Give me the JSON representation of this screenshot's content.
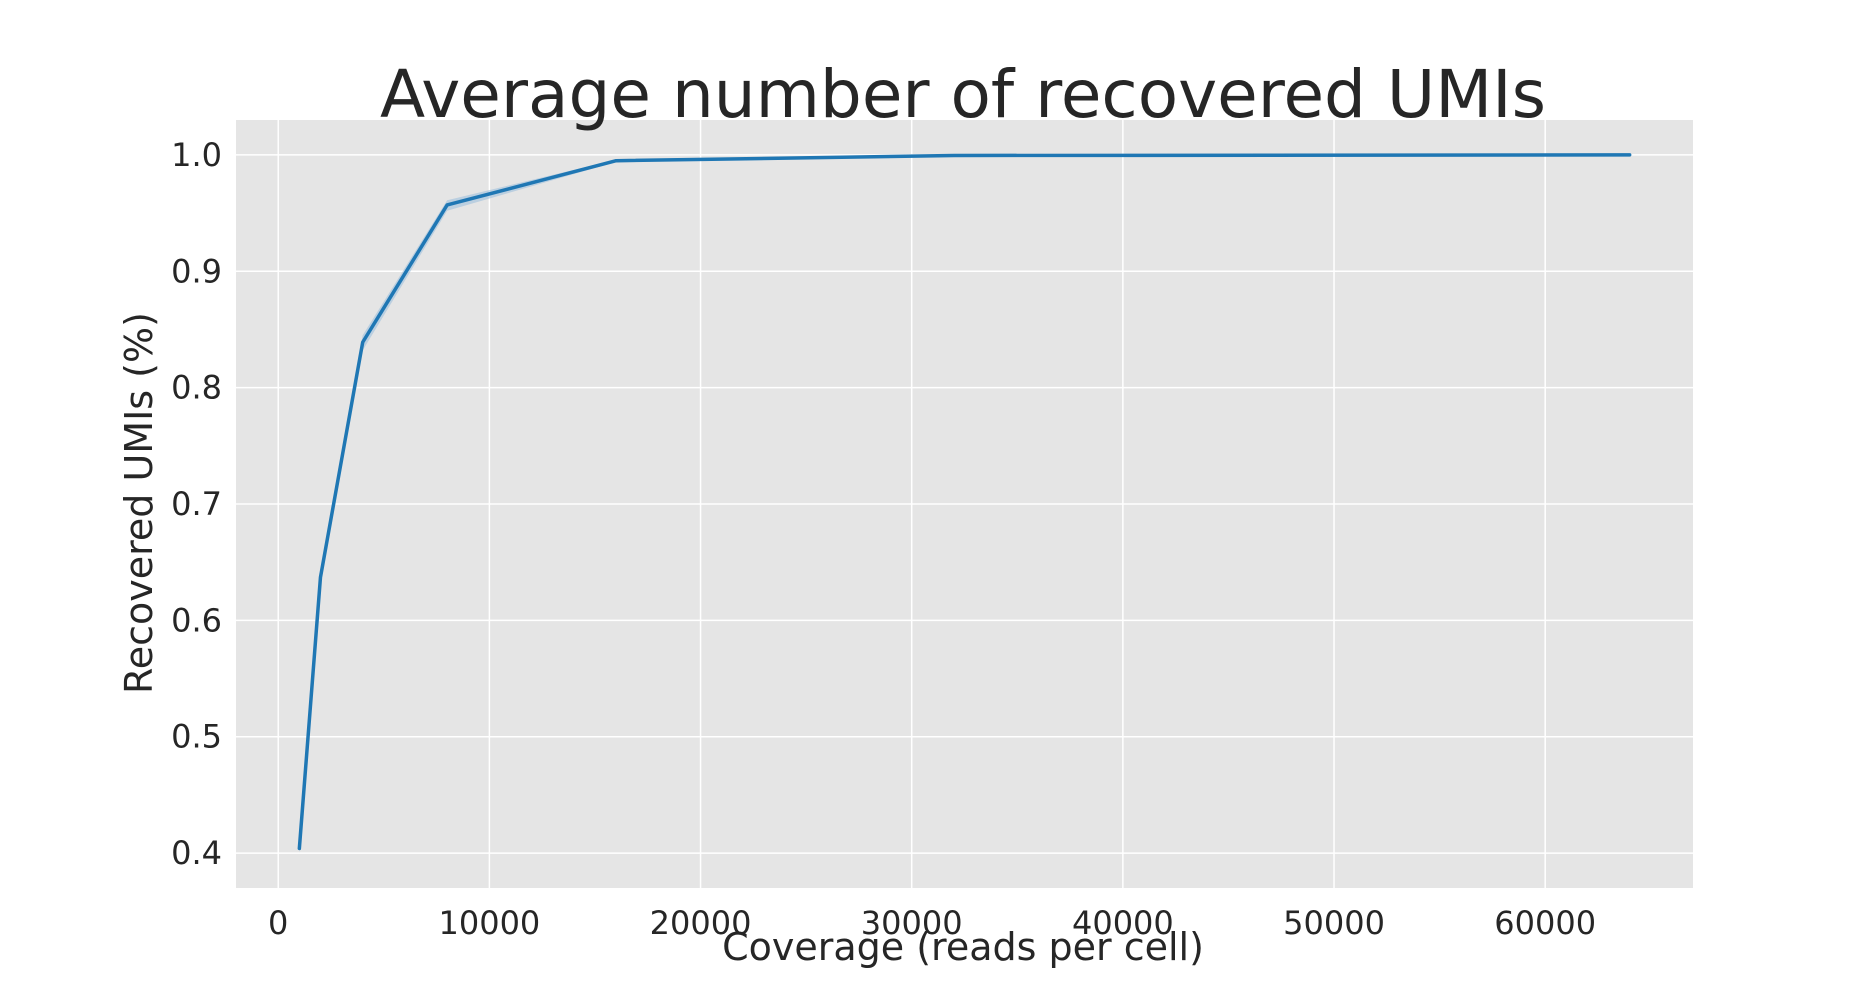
{
  "chart_data": {
    "type": "line",
    "title": "Average number of recovered UMIs",
    "xlabel": "Coverage (reads per cell)",
    "ylabel": "Recovered UMIs (%)",
    "xlim": [
      -2000,
      67000
    ],
    "ylim": [
      0.37,
      1.03
    ],
    "xticks": [
      0,
      10000,
      20000,
      30000,
      40000,
      50000,
      60000
    ],
    "xtick_labels": [
      "0",
      "10000",
      "20000",
      "30000",
      "40000",
      "50000",
      "60000"
    ],
    "yticks": [
      0.4,
      0.5,
      0.6,
      0.7,
      0.8,
      0.9,
      1.0
    ],
    "ytick_labels": [
      "0.4",
      "0.5",
      "0.6",
      "0.7",
      "0.8",
      "0.9",
      "1.0"
    ],
    "grid": true,
    "series": [
      {
        "x": [
          1000,
          2000,
          4000,
          8000,
          16000,
          32000,
          64000
        ],
        "y": [
          0.404,
          0.637,
          0.839,
          0.957,
          0.995,
          0.9995,
          1.0
        ],
        "ci_lower": [
          0.4,
          0.63,
          0.832,
          0.952,
          0.994,
          0.9993,
          0.9999
        ],
        "ci_upper": [
          0.408,
          0.643,
          0.845,
          0.961,
          0.996,
          0.9997,
          1.0
        ],
        "color": "#1f77b4"
      }
    ],
    "colors": {
      "background": "#e5e5e5",
      "grid": "#ffffff",
      "line": "#1f77b4",
      "band": "#9ebfdc"
    }
  }
}
